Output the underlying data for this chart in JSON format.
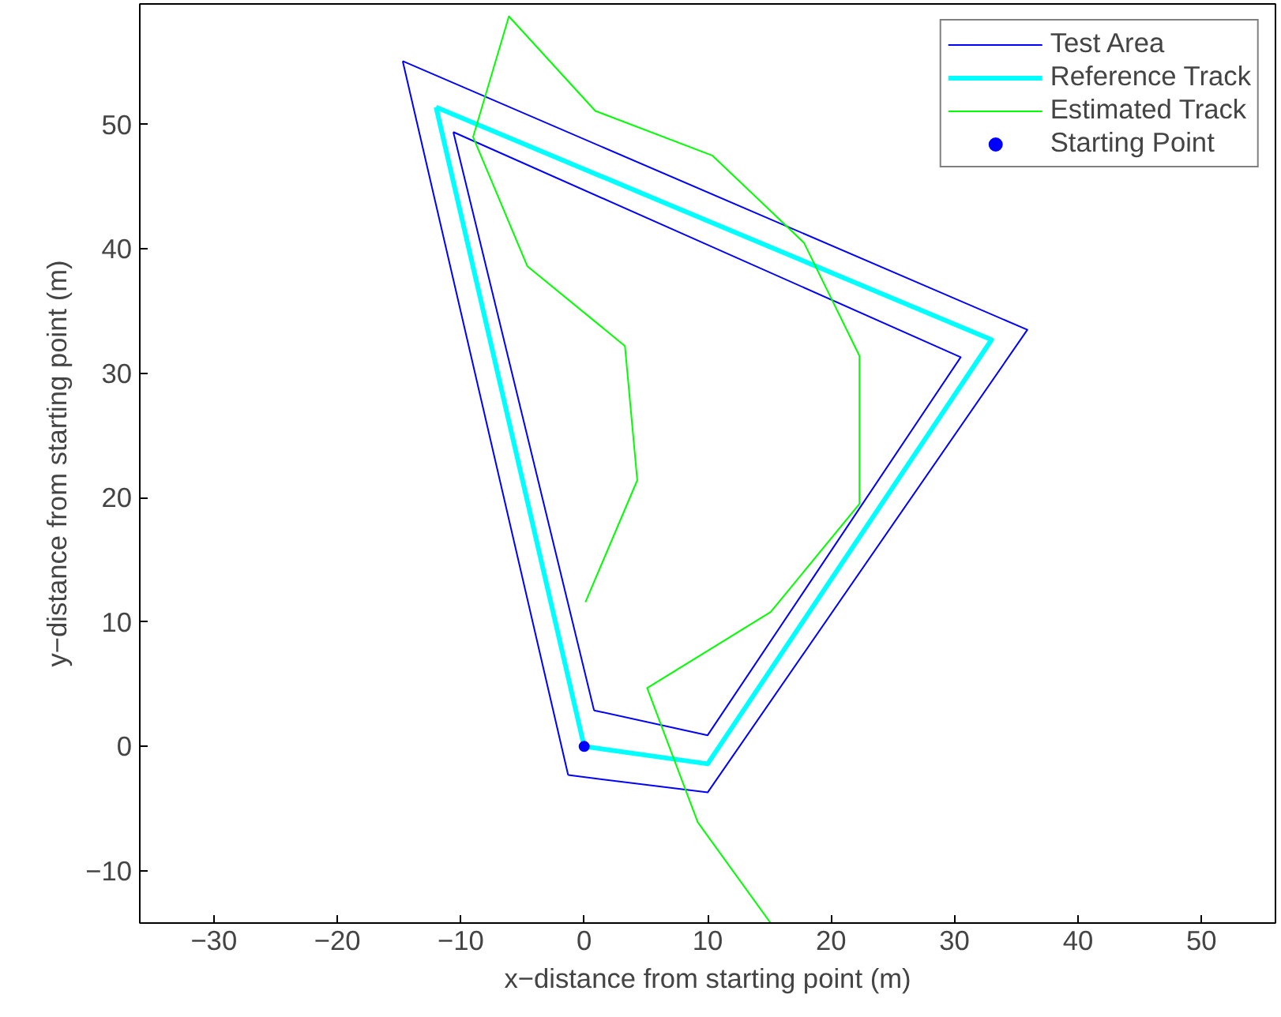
{
  "chart_data": {
    "type": "line",
    "xlabel": "x−distance from starting point (m)",
    "ylabel": "y−distance from starting point (m)",
    "xlim": [
      -36,
      56
    ],
    "ylim": [
      -14.2,
      59.7
    ],
    "xticks": [
      -30,
      -20,
      -10,
      0,
      10,
      20,
      30,
      40,
      50
    ],
    "yticks": [
      -10,
      0,
      10,
      20,
      30,
      40,
      50
    ],
    "grid": false,
    "legend": "top right",
    "series": [
      {
        "name": "Test Area",
        "color": "#0000ff",
        "x": [
          -14.7,
          35.9,
          10.0,
          -1.3
        ],
        "values": [
          55.1,
          33.5,
          -3.7,
          -2.3
        ]
      },
      {
        "color": "#0000ff",
        "x": [
          -1.3,
          -14.7
        ],
        "values": [
          -2.3,
          55.1
        ]
      },
      {
        "color": "#0000ff",
        "x": [
          -10.6,
          30.5,
          10.0,
          0.8
        ],
        "values": [
          49.4,
          31.3,
          0.9,
          2.9
        ]
      },
      {
        "color": "#0000ff",
        "x": [
          0.8,
          -10.6
        ],
        "values": [
          2.9,
          49.4
        ]
      },
      {
        "name": "Reference Track",
        "color": "#00ffff",
        "x": [
          0,
          10,
          33,
          -12
        ],
        "values": [
          0,
          -1.4,
          32.7,
          51.4
        ]
      },
      {
        "color": "#00ffff",
        "x": [
          -12,
          0
        ],
        "values": [
          51.4,
          0
        ]
      },
      {
        "name": "Estimated Track",
        "color": "#00ff00",
        "x": [
          0.1,
          4.3,
          3.3,
          -4.6,
          -9,
          -6.1,
          0.9,
          10.4,
          17.8,
          22.3,
          22.3,
          15.1,
          5.1,
          9.2,
          15.1
        ],
        "values": [
          11.6,
          21.4,
          32.2,
          38.6,
          49,
          58.7,
          51.1,
          47.5,
          40.5,
          31.4,
          19.5,
          10.8,
          4.7,
          -6.1,
          -14.2
        ]
      },
      {
        "name": "Starting Point",
        "type": "scatter",
        "marker": "circle",
        "color": "#0000ff",
        "x": [
          0
        ],
        "values": [
          0
        ]
      }
    ]
  }
}
